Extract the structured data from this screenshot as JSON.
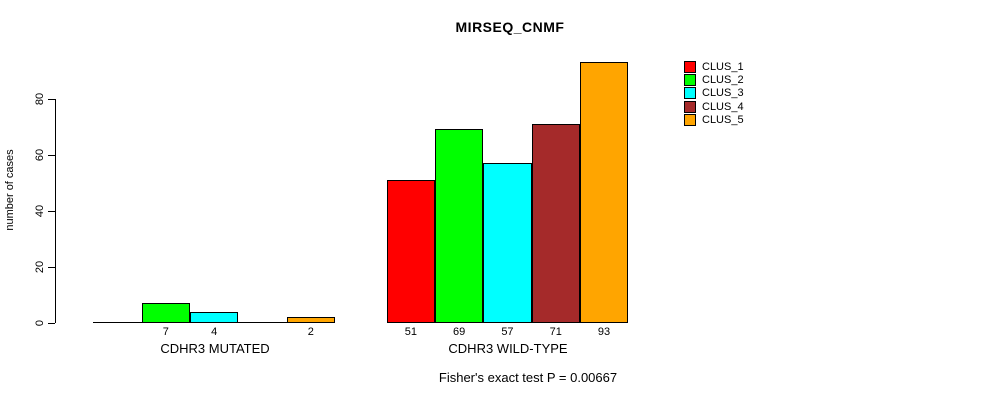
{
  "title": "MIRSEQ_CNMF",
  "chart_data": {
    "type": "bar",
    "title": "MIRSEQ_CNMF",
    "ylabel": "number of cases",
    "xlabel": "",
    "ylim": [
      0,
      93
    ],
    "yticks": [
      0,
      20,
      40,
      60,
      80
    ],
    "grid": false,
    "legend_position": "right-outside",
    "groups": [
      "CDHR3 MUTATED",
      "CDHR3 WILD-TYPE"
    ],
    "series": [
      {
        "name": "CLUS_1",
        "color": "#FF0000",
        "values": [
          0,
          51
        ]
      },
      {
        "name": "CLUS_2",
        "color": "#00FF00",
        "values": [
          7,
          69
        ]
      },
      {
        "name": "CLUS_3",
        "color": "#00FFFF",
        "values": [
          4,
          57
        ]
      },
      {
        "name": "CLUS_4",
        "color": "#A52A2A",
        "values": [
          0,
          71
        ]
      },
      {
        "name": "CLUS_5",
        "color": "#FFA500",
        "values": [
          2,
          93
        ]
      }
    ],
    "bar_value_labels_shown": "only non-zero values, printed under each bar",
    "annotation": "Fisher's exact test P = 0.00667"
  }
}
